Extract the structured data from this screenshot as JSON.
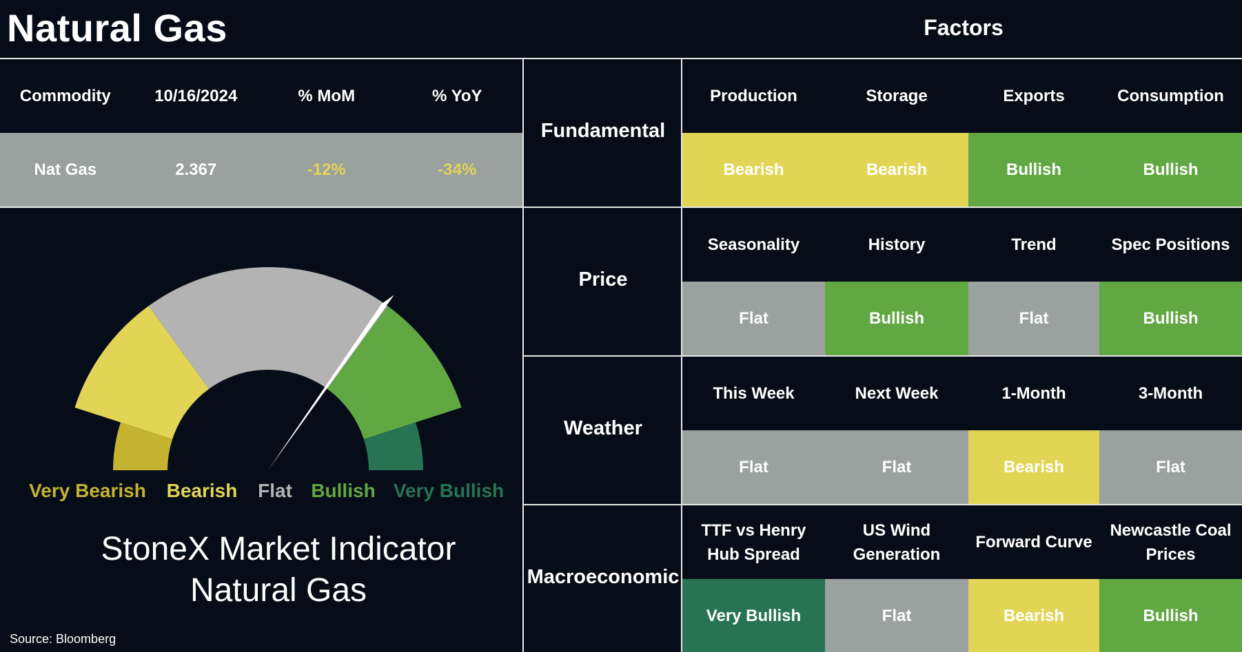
{
  "title": "Natural Gas",
  "factors_title": "Factors",
  "colors": {
    "background": "#070d18",
    "very_bearish": "#c4b231",
    "bearish": "#e2d556",
    "flat": "#9aa19f",
    "bullish": "#61a843",
    "very_bullish": "#277354",
    "gauge_flat": "#b3b3b3"
  },
  "commodity_table": {
    "headers": [
      "Commodity",
      "10/16/2024",
      "% MoM",
      "% YoY"
    ],
    "values": [
      "Nat Gas",
      "2.367",
      "-12%",
      "-34%"
    ]
  },
  "chart_data": {
    "type": "gauge",
    "title": "StoneX Market Indicator",
    "subtitle": "Natural Gas",
    "categories": [
      "Very Bearish",
      "Bearish",
      "Flat",
      "Bullish",
      "Very Bullish"
    ],
    "category_colors": [
      "#c4b231",
      "#e2d556",
      "#b3b3b3",
      "#61a843",
      "#277354"
    ],
    "segment_bounds_deg": [
      0,
      18,
      54,
      126,
      162,
      180
    ],
    "needle_angle_deg": 125,
    "needle_reading": "Bullish (Flat/Bullish boundary)"
  },
  "factors": [
    {
      "category": "Fundamental",
      "items": [
        {
          "label": "Production",
          "value": "Bearish"
        },
        {
          "label": "Storage",
          "value": "Bearish"
        },
        {
          "label": "Exports",
          "value": "Bullish"
        },
        {
          "label": "Consumption",
          "value": "Bullish"
        }
      ]
    },
    {
      "category": "Price",
      "items": [
        {
          "label": "Seasonality",
          "value": "Flat"
        },
        {
          "label": "History",
          "value": "Bullish"
        },
        {
          "label": "Trend",
          "value": "Flat"
        },
        {
          "label": "Spec Positions",
          "value": "Bullish"
        }
      ]
    },
    {
      "category": "Weather",
      "items": [
        {
          "label": "This Week",
          "value": "Flat"
        },
        {
          "label": "Next Week",
          "value": "Flat"
        },
        {
          "label": "1-Month",
          "value": "Bearish"
        },
        {
          "label": "3-Month",
          "value": "Flat"
        }
      ]
    },
    {
      "category": "Macroeconomic",
      "items": [
        {
          "label": "TTF vs Henry Hub Spread",
          "value": "Very Bullish"
        },
        {
          "label": "US Wind Generation",
          "value": "Flat"
        },
        {
          "label": "Forward Curve",
          "value": "Bearish"
        },
        {
          "label": "Newcastle Coal Prices",
          "value": "Bullish"
        }
      ]
    }
  ],
  "source": "Source: Bloomberg"
}
